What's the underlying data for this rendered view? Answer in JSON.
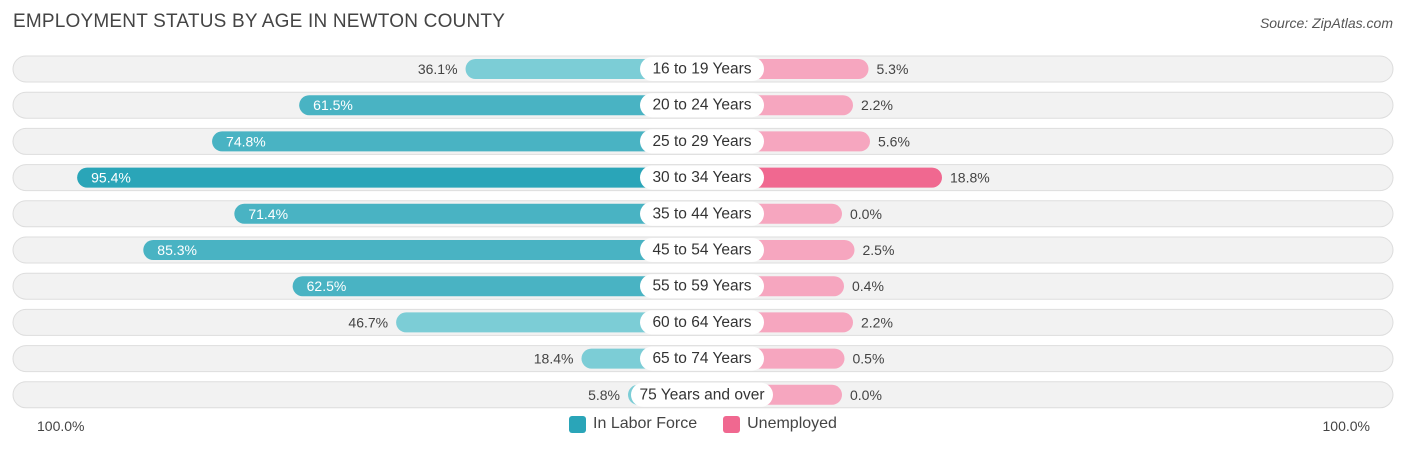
{
  "title": "EMPLOYMENT STATUS BY AGE IN NEWTON COUNTY",
  "source": "Source: ZipAtlas.com",
  "colors": {
    "labor_dark": "#2aa5b8",
    "labor_light": "#7ccdd6",
    "unemployed_dark": "#f06890",
    "unemployed_light": "#f6a6bf",
    "row_bg": "#f2f2f2",
    "row_border": "#dddddd"
  },
  "axis": {
    "left_label": "100.0%",
    "right_label": "100.0%"
  },
  "chart_data": {
    "type": "bar",
    "title": "EMPLOYMENT STATUS BY AGE IN NEWTON COUNTY",
    "categories": [
      "16 to 19 Years",
      "20 to 24 Years",
      "25 to 29 Years",
      "30 to 34 Years",
      "35 to 44 Years",
      "45 to 54 Years",
      "55 to 59 Years",
      "60 to 64 Years",
      "65 to 74 Years",
      "75 Years and over"
    ],
    "series": [
      {
        "name": "In Labor Force",
        "values": [
          36.1,
          61.5,
          74.8,
          95.4,
          71.4,
          85.3,
          62.5,
          46.7,
          18.4,
          5.8
        ],
        "labels": [
          "36.1%",
          "61.5%",
          "74.8%",
          "95.4%",
          "71.4%",
          "85.3%",
          "62.5%",
          "46.7%",
          "18.4%",
          "5.8%"
        ]
      },
      {
        "name": "Unemployed",
        "values": [
          5.3,
          2.2,
          5.6,
          18.8,
          0.0,
          2.5,
          0.4,
          2.2,
          0.5,
          0.0
        ],
        "labels": [
          "5.3%",
          "2.2%",
          "5.6%",
          "18.8%",
          "0.0%",
          "2.5%",
          "0.4%",
          "2.2%",
          "0.5%",
          "0.0%"
        ]
      }
    ],
    "xlim": [
      0,
      100
    ],
    "legend_position": "bottom-center"
  }
}
